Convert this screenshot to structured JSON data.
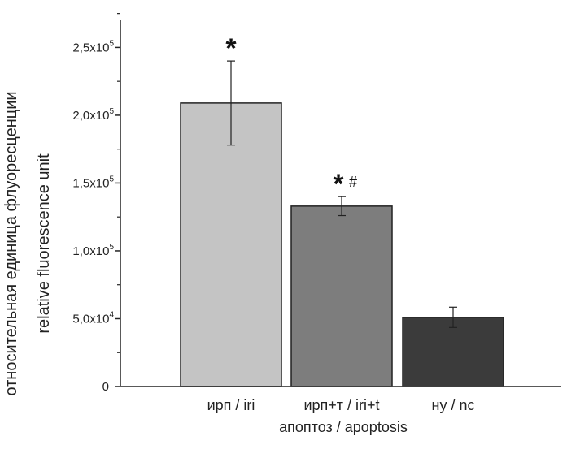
{
  "chart_data": {
    "type": "bar",
    "categories": [
      "ирп / iri",
      "ирп+т / iri+t",
      "ну / nc"
    ],
    "values": [
      209000,
      133000,
      51000
    ],
    "errors": [
      31000,
      7000,
      7500
    ],
    "bar_colors": [
      "#c4c4c4",
      "#7d7d7d",
      "#3b3b3b"
    ],
    "significance_markers": [
      "*",
      "* #",
      ""
    ],
    "xlabel": "апоптоз / apoptosis",
    "ylabel_line1": "относительная единица флуоресценции",
    "ylabel_line2": "relative fluorescence unit",
    "ylim": [
      0,
      270000
    ],
    "yticks": [
      {
        "value": 0,
        "base": "0",
        "exp": ""
      },
      {
        "value": 50000,
        "base": "5,0x10",
        "exp": "4"
      },
      {
        "value": 100000,
        "base": "1,0x10",
        "exp": "5"
      },
      {
        "value": 150000,
        "base": "1,5x10",
        "exp": "5"
      },
      {
        "value": 200000,
        "base": "2,0x10",
        "exp": "5"
      },
      {
        "value": 250000,
        "base": "2,5x10",
        "exp": "5"
      }
    ],
    "grid": false,
    "legend": "none"
  }
}
